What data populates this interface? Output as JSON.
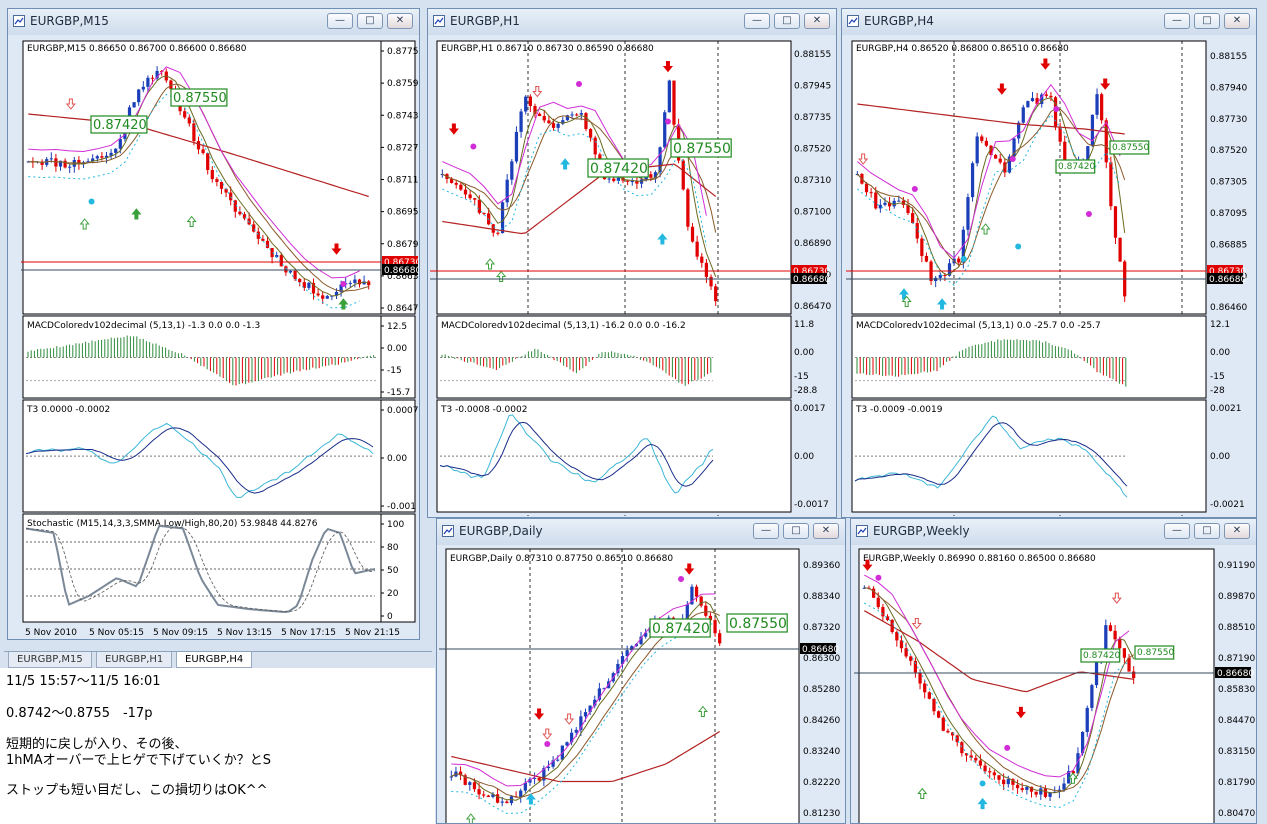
{
  "colors": {
    "up": "#1a3fb8",
    "down": "#e00000",
    "ma_red": "#b42222",
    "ma_brown": "#8b5a2b",
    "ma_olive": "#6b6b20",
    "magenta": "#d12cd6",
    "cyan": "#22b8e0",
    "green": "#1f8a1f",
    "gray": "#7a8898",
    "price_red": "#e00000",
    "price_black": "#000000"
  },
  "windows": [
    {
      "title": "EURGBP,M15",
      "ohlc": "EURGBP,M15  0.86650 0.86700 0.86600 0.86680",
      "yticks": [
        "0.87750",
        "0.87590",
        "0.87430",
        "0.87270",
        "0.87115",
        "0.86955",
        "0.86795",
        "0.86635",
        "0.86475"
      ],
      "price_red": "0.86730",
      "price_black": "0.86680",
      "box_labels": [
        "0.87420",
        "0.87550"
      ],
      "macd": {
        "label": "MACDColoredv102decimal (5,13,1) -1.3 0.0 0.0 -1.3",
        "ticks": [
          "12.5",
          "0.00",
          "-15",
          "-15.7"
        ]
      },
      "t3": {
        "label": "T3 0.0000 -0.0002",
        "ticks": [
          "0.0007",
          "0.00",
          "-0.001"
        ]
      },
      "stoch": {
        "label": "Stochastic (M15,14,3,3,SMMA,Low/High,80,20) 53.9848 44.8276",
        "ticks": [
          "100",
          "80",
          "50",
          "20",
          "0"
        ]
      },
      "xlabels": [
        "5 Nov 2010",
        "5 Nov 05:15",
        "5 Nov 09:15",
        "5 Nov 13:15",
        "5 Nov 17:15",
        "5 Nov 21:15"
      ]
    },
    {
      "title": "EURGBP,H1",
      "ohlc": "EURGBP,H1  0.86710 0.86730 0.86590 0.86680",
      "yticks": [
        "0.88155",
        "0.87945",
        "0.87735",
        "0.87520",
        "0.87310",
        "0.87100",
        "0.86890",
        "0.86680",
        "0.86470"
      ],
      "price_red": "0.86730",
      "price_black": "0.86680",
      "box_labels": [
        "0.87420",
        "0.87550"
      ],
      "macd": {
        "label": "MACDColoredv102decimal (5,13,1) -16.2 0.0 0.0 -16.2",
        "ticks": [
          "11.8",
          "0.00",
          "-15",
          "-28.8"
        ]
      },
      "t3": {
        "label": "T3 -0.0008 -0.0002",
        "ticks": [
          "0.0017",
          "0.00",
          "-0.0017"
        ]
      }
    },
    {
      "title": "EURGBP,H4",
      "ohlc": "EURGBP,H4  0.86520 0.86800 0.86510 0.86680",
      "yticks": [
        "0.88155",
        "0.87940",
        "0.87730",
        "0.87520",
        "0.87305",
        "0.87095",
        "0.86885",
        "0.86680",
        "0.86460"
      ],
      "price_red": "0.86730",
      "price_black": "0.86680",
      "box_labels": [
        "0.87420",
        "0.87550"
      ],
      "macd": {
        "label": "MACDColoredv102decimal (5,13,1) 0.0 -25.7 0.0 -25.7",
        "ticks": [
          "12.1",
          "0.00",
          "-15",
          "-28"
        ]
      },
      "t3": {
        "label": "T3 -0.0009 -0.0019",
        "ticks": [
          "0.0021",
          "0.00",
          "-0.0021"
        ]
      }
    },
    {
      "title": "EURGBP,Daily",
      "ohlc": "EURGBP,Daily  0.87310 0.87750 0.86510 0.86680",
      "yticks": [
        "0.89360",
        "0.88340",
        "0.87320",
        "0.86300",
        "0.85280",
        "0.84260",
        "0.83240",
        "0.82220",
        "0.81230"
      ],
      "price_black": "0.86680",
      "box_labels": [
        "0.87420",
        "0.87550"
      ]
    },
    {
      "title": "EURGBP,Weekly",
      "ohlc": "EURGBP,Weekly  0.86990 0.88160 0.86500 0.86680",
      "yticks": [
        "0.91190",
        "0.89870",
        "0.88510",
        "0.87190",
        "0.85830",
        "0.84470",
        "0.83150",
        "0.81790",
        "0.80470"
      ],
      "price_black": "0.86680",
      "box_labels": [
        "0.87420",
        "0.87550"
      ]
    }
  ],
  "tabs": [
    "EURGBP,M15",
    "EURGBP,H1",
    "EURGBP,H4"
  ],
  "memo": {
    "line1": "11/5 15:57〜11/5 16:01",
    "line2": "0.8742〜0.8755　-17p",
    "line3": "短期的に戻しが入り、その後、",
    "line4": "1hMAオーバーで上ヒゲで下げていくか？とS",
    "line5": "ストップも短い目だし、この損切りはOK^^"
  }
}
